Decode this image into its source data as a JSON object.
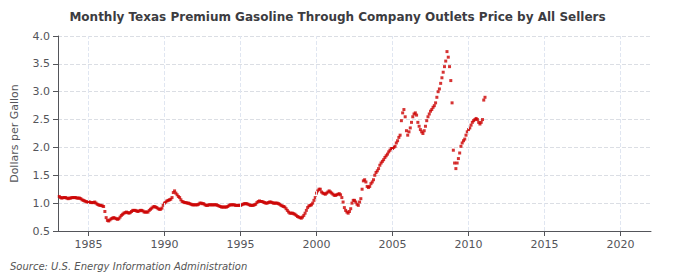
{
  "chart_data": {
    "type": "scatter",
    "title": "Monthly Texas Premium Gasoline Through Company Outlets Price by All Sellers",
    "ylabel": "Dollars per Gallon",
    "annotations": [
      "Source: U.S. Energy Information Administration"
    ],
    "xlim": [
      1983,
      2022
    ],
    "xticks": [
      1985,
      1990,
      1995,
      2000,
      2005,
      2010,
      2015,
      2020
    ],
    "ylim": [
      0.5,
      4.0
    ],
    "yticks": [
      0.5,
      {
        "value": 1.0,
        "label": "1.0"
      },
      1.5,
      {
        "value": 2.0,
        "label": "2.0"
      },
      2.5,
      {
        "value": 3.0,
        "label": "3.0"
      },
      3.5,
      {
        "value": 4.0,
        "label": "4.0"
      }
    ],
    "grid": true,
    "color": "#cc0000",
    "marker": "square",
    "x": [
      1983.083,
      1983.167,
      1983.25,
      1983.333,
      1983.417,
      1983.5,
      1983.583,
      1983.667,
      1983.75,
      1983.833,
      1983.917,
      1984.0,
      1984.083,
      1984.167,
      1984.25,
      1984.333,
      1984.417,
      1984.5,
      1984.583,
      1984.667,
      1984.75,
      1984.833,
      1984.917,
      1985.0,
      1985.083,
      1985.167,
      1985.25,
      1985.333,
      1985.417,
      1985.5,
      1985.583,
      1985.667,
      1985.75,
      1985.833,
      1985.917,
      1986.0,
      1986.083,
      1986.167,
      1986.25,
      1986.333,
      1986.417,
      1986.5,
      1986.583,
      1986.667,
      1986.75,
      1986.833,
      1986.917,
      1987.0,
      1987.083,
      1987.167,
      1987.25,
      1987.333,
      1987.417,
      1987.5,
      1987.583,
      1987.667,
      1987.75,
      1987.833,
      1987.917,
      1988.0,
      1988.083,
      1988.167,
      1988.25,
      1988.333,
      1988.417,
      1988.5,
      1988.583,
      1988.667,
      1988.75,
      1988.833,
      1988.917,
      1989.0,
      1989.083,
      1989.167,
      1989.25,
      1989.333,
      1989.417,
      1989.5,
      1989.583,
      1989.667,
      1989.75,
      1989.833,
      1989.917,
      1990.0,
      1990.083,
      1990.167,
      1990.25,
      1990.333,
      1990.417,
      1990.5,
      1990.583,
      1990.667,
      1990.75,
      1990.833,
      1990.917,
      1991.0,
      1991.083,
      1991.167,
      1991.25,
      1991.333,
      1991.417,
      1991.5,
      1991.583,
      1991.667,
      1991.75,
      1991.833,
      1991.917,
      1992.0,
      1992.083,
      1992.167,
      1992.25,
      1992.333,
      1992.417,
      1992.5,
      1992.583,
      1992.667,
      1992.75,
      1992.833,
      1992.917,
      1993.0,
      1993.083,
      1993.167,
      1993.25,
      1993.333,
      1993.417,
      1993.5,
      1993.583,
      1993.667,
      1993.75,
      1993.833,
      1993.917,
      1994.0,
      1994.083,
      1994.167,
      1994.25,
      1994.333,
      1994.417,
      1994.5,
      1994.583,
      1994.667,
      1994.75,
      1994.833,
      1994.917,
      1995.0,
      1995.083,
      1995.167,
      1995.25,
      1995.333,
      1995.417,
      1995.5,
      1995.583,
      1995.667,
      1995.75,
      1995.833,
      1995.917,
      1996.0,
      1996.083,
      1996.167,
      1996.25,
      1996.333,
      1996.417,
      1996.5,
      1996.583,
      1996.667,
      1996.75,
      1996.833,
      1996.917,
      1997.0,
      1997.083,
      1997.167,
      1997.25,
      1997.333,
      1997.417,
      1997.5,
      1997.583,
      1997.667,
      1997.75,
      1997.833,
      1997.917,
      1998.0,
      1998.083,
      1998.167,
      1998.25,
      1998.333,
      1998.417,
      1998.5,
      1998.583,
      1998.667,
      1998.75,
      1998.833,
      1998.917,
      1999.0,
      1999.083,
      1999.167,
      1999.25,
      1999.333,
      1999.417,
      1999.5,
      1999.583,
      1999.667,
      1999.75,
      1999.833,
      1999.917,
      2000.0,
      2000.083,
      2000.167,
      2000.25,
      2000.333,
      2000.417,
      2000.5,
      2000.583,
      2000.667,
      2000.75,
      2000.833,
      2000.917,
      2001.0,
      2001.083,
      2001.167,
      2001.25,
      2001.333,
      2001.417,
      2001.5,
      2001.583,
      2001.667,
      2001.75,
      2001.833,
      2001.917,
      2002.0,
      2002.083,
      2002.167,
      2002.25,
      2002.333,
      2002.417,
      2002.5,
      2002.583,
      2002.667,
      2002.75,
      2002.833,
      2002.917,
      2003.0,
      2003.083,
      2003.167,
      2003.25,
      2003.333,
      2003.417,
      2003.5,
      2003.583,
      2003.667,
      2003.75,
      2003.833,
      2003.917,
      2004.0,
      2004.083,
      2004.167,
      2004.25,
      2004.333,
      2004.417,
      2004.5,
      2004.583,
      2004.667,
      2004.75,
      2004.833,
      2004.917,
      2005.0,
      2005.083,
      2005.167,
      2005.25,
      2005.333,
      2005.417,
      2005.5,
      2005.583,
      2005.667,
      2005.75,
      2005.833,
      2005.917,
      2006.0,
      2006.083,
      2006.167,
      2006.25,
      2006.333,
      2006.417,
      2006.5,
      2006.583,
      2006.667,
      2006.75,
      2006.833,
      2006.917,
      2007.0,
      2007.083,
      2007.167,
      2007.25,
      2007.333,
      2007.417,
      2007.5,
      2007.583,
      2007.667,
      2007.75,
      2007.833,
      2007.917,
      2008.0,
      2008.083,
      2008.167,
      2008.25,
      2008.333,
      2008.417,
      2008.5,
      2008.583,
      2008.667,
      2008.75,
      2008.833,
      2008.917,
      2009.0,
      2009.083,
      2009.167,
      2009.25,
      2009.333,
      2009.417,
      2009.5,
      2009.583,
      2009.667,
      2009.75,
      2009.833,
      2009.917,
      2010.0,
      2010.083,
      2010.167,
      2010.25,
      2010.333,
      2010.417,
      2010.5,
      2010.583,
      2010.667,
      2010.75,
      2010.833,
      2010.917,
      2011.0,
      2011.083
    ],
    "values": [
      1.12,
      1.1,
      1.09,
      1.1,
      1.1,
      1.1,
      1.09,
      1.08,
      1.09,
      1.09,
      1.1,
      1.1,
      1.1,
      1.1,
      1.09,
      1.09,
      1.09,
      1.08,
      1.06,
      1.05,
      1.04,
      1.03,
      1.02,
      1.02,
      1.02,
      1.01,
      1.01,
      1.01,
      1.02,
      1.0,
      0.98,
      0.97,
      0.96,
      0.96,
      0.95,
      0.94,
      0.85,
      0.74,
      0.69,
      0.68,
      0.7,
      0.72,
      0.73,
      0.74,
      0.73,
      0.72,
      0.71,
      0.72,
      0.75,
      0.78,
      0.8,
      0.82,
      0.83,
      0.84,
      0.83,
      0.82,
      0.83,
      0.85,
      0.87,
      0.87,
      0.87,
      0.86,
      0.85,
      0.86,
      0.87,
      0.87,
      0.86,
      0.84,
      0.84,
      0.84,
      0.84,
      0.87,
      0.89,
      0.91,
      0.93,
      0.94,
      0.93,
      0.92,
      0.9,
      0.89,
      0.89,
      0.91,
      0.96,
      1.0,
      1.02,
      1.04,
      1.05,
      1.06,
      1.07,
      1.1,
      1.19,
      1.22,
      1.18,
      1.15,
      1.12,
      1.1,
      1.06,
      1.03,
      1.02,
      1.01,
      1.01,
      1.0,
      1.0,
      0.99,
      0.98,
      0.97,
      0.97,
      0.97,
      0.97,
      0.97,
      0.98,
      1.0,
      1.0,
      0.99,
      0.99,
      0.97,
      0.96,
      0.96,
      0.97,
      0.97,
      0.97,
      0.97,
      0.97,
      0.97,
      0.97,
      0.96,
      0.95,
      0.94,
      0.93,
      0.93,
      0.93,
      0.93,
      0.93,
      0.94,
      0.96,
      0.97,
      0.97,
      0.97,
      0.97,
      0.96,
      0.96,
      0.96,
      0.96,
      0.96,
      0.97,
      0.98,
      0.99,
      0.99,
      0.99,
      0.98,
      0.97,
      0.96,
      0.96,
      0.96,
      0.97,
      0.98,
      1.01,
      1.03,
      1.04,
      1.03,
      1.03,
      1.02,
      1.01,
      1.0,
      1.0,
      1.01,
      1.02,
      1.02,
      1.01,
      1.0,
      1.0,
      1.0,
      1.0,
      0.99,
      0.98,
      0.96,
      0.95,
      0.94,
      0.93,
      0.9,
      0.87,
      0.84,
      0.82,
      0.82,
      0.82,
      0.81,
      0.8,
      0.78,
      0.76,
      0.75,
      0.74,
      0.73,
      0.75,
      0.78,
      0.82,
      0.87,
      0.92,
      0.95,
      0.96,
      0.97,
      1.0,
      1.05,
      1.1,
      1.18,
      1.22,
      1.25,
      1.25,
      1.2,
      1.18,
      1.17,
      1.16,
      1.18,
      1.2,
      1.22,
      1.2,
      1.18,
      1.16,
      1.14,
      1.14,
      1.15,
      1.16,
      1.17,
      1.15,
      1.1,
      1.02,
      0.92,
      0.87,
      0.84,
      0.82,
      0.85,
      0.9,
      1.0,
      1.05,
      1.05,
      1.02,
      0.98,
      0.96,
      1.02,
      1.08,
      1.25,
      1.4,
      1.42,
      1.38,
      1.3,
      1.28,
      1.3,
      1.35,
      1.38,
      1.42,
      1.5,
      1.55,
      1.58,
      1.62,
      1.68,
      1.72,
      1.75,
      1.78,
      1.82,
      1.85,
      1.88,
      1.92,
      1.95,
      1.98,
      1.98,
      2.0,
      2.02,
      2.08,
      2.12,
      2.18,
      2.22,
      2.48,
      2.62,
      2.68,
      2.55,
      2.3,
      2.22,
      2.28,
      2.35,
      2.45,
      2.55,
      2.6,
      2.62,
      2.58,
      2.45,
      2.38,
      2.32,
      2.28,
      2.25,
      2.3,
      2.38,
      2.48,
      2.55,
      2.6,
      2.65,
      2.68,
      2.72,
      2.75,
      2.8,
      2.9,
      3.0,
      3.05,
      3.15,
      3.25,
      3.35,
      3.45,
      3.55,
      3.72,
      3.62,
      3.45,
      3.2,
      2.8,
      1.95,
      1.72,
      1.62,
      1.72,
      1.8,
      1.9,
      2.02,
      2.08,
      2.12,
      2.15,
      2.22,
      2.28,
      2.32,
      2.35,
      2.4,
      2.45,
      2.48,
      2.5,
      2.52,
      2.5,
      2.45,
      2.42,
      2.45,
      2.5,
      2.85,
      2.9
    ]
  }
}
